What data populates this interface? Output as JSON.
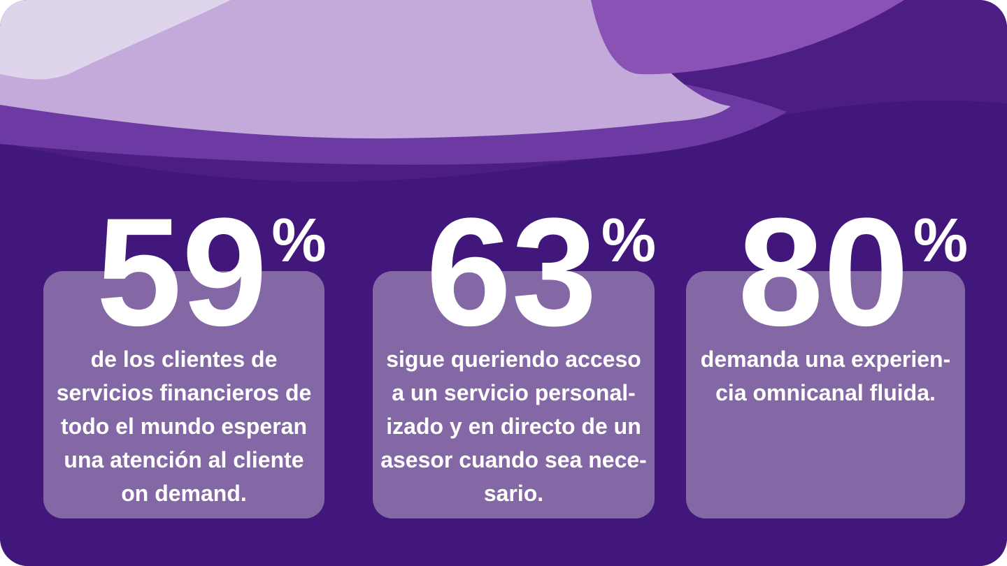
{
  "theme": {
    "background_base": "#41177B",
    "wave_soft_dark": "#4C1D83",
    "wave_medium": "#6D3AA3",
    "wave_bright": "#8A52B5",
    "wave_light": "#C3AADA",
    "wave_lightest": "#DED4EC",
    "card_background": "#8468A6",
    "text_color": "#FFFFFF"
  },
  "stats": [
    {
      "value": "59",
      "unit": "%",
      "description_lines": [
        "de los clientes de",
        "servicios financieros de",
        "todo el mundo esperan",
        "una atención al cliente",
        "on demand."
      ]
    },
    {
      "value": "63",
      "unit": "%",
      "description_lines": [
        "sigue queriendo acceso",
        "a un servicio personal-",
        "izado y en directo de un",
        "asesor cuando sea nece-",
        "sario."
      ]
    },
    {
      "value": "80",
      "unit": "%",
      "description_lines": [
        "demanda una experien-",
        "cia omnicanal fluida."
      ]
    }
  ]
}
